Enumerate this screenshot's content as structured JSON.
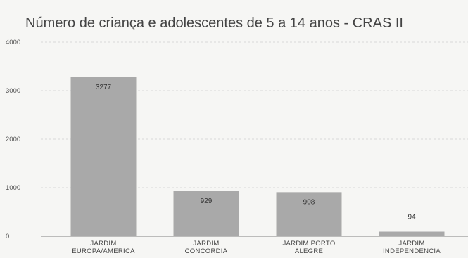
{
  "chart_data": {
    "type": "bar",
    "title": "Número de criança e adolescentes de 5 a 14 anos - CRAS II",
    "xlabel": "",
    "ylabel": "",
    "ylim": [
      0,
      4000
    ],
    "yticks": [
      0,
      1000,
      2000,
      3000,
      4000
    ],
    "grid": true,
    "legend": "none",
    "categories": [
      [
        "JARDIM",
        "EUROPA/AMERICA"
      ],
      [
        "JARDIM",
        "CONCORDIA"
      ],
      [
        "JARDIM PORTO",
        "ALEGRE"
      ],
      [
        "JARDIM",
        "INDEPENDENCIA"
      ]
    ],
    "values": [
      3277,
      929,
      908,
      94
    ],
    "data_labels": [
      "3277",
      "929",
      "908",
      "94"
    ],
    "bar_color": "#a9a9a9"
  }
}
